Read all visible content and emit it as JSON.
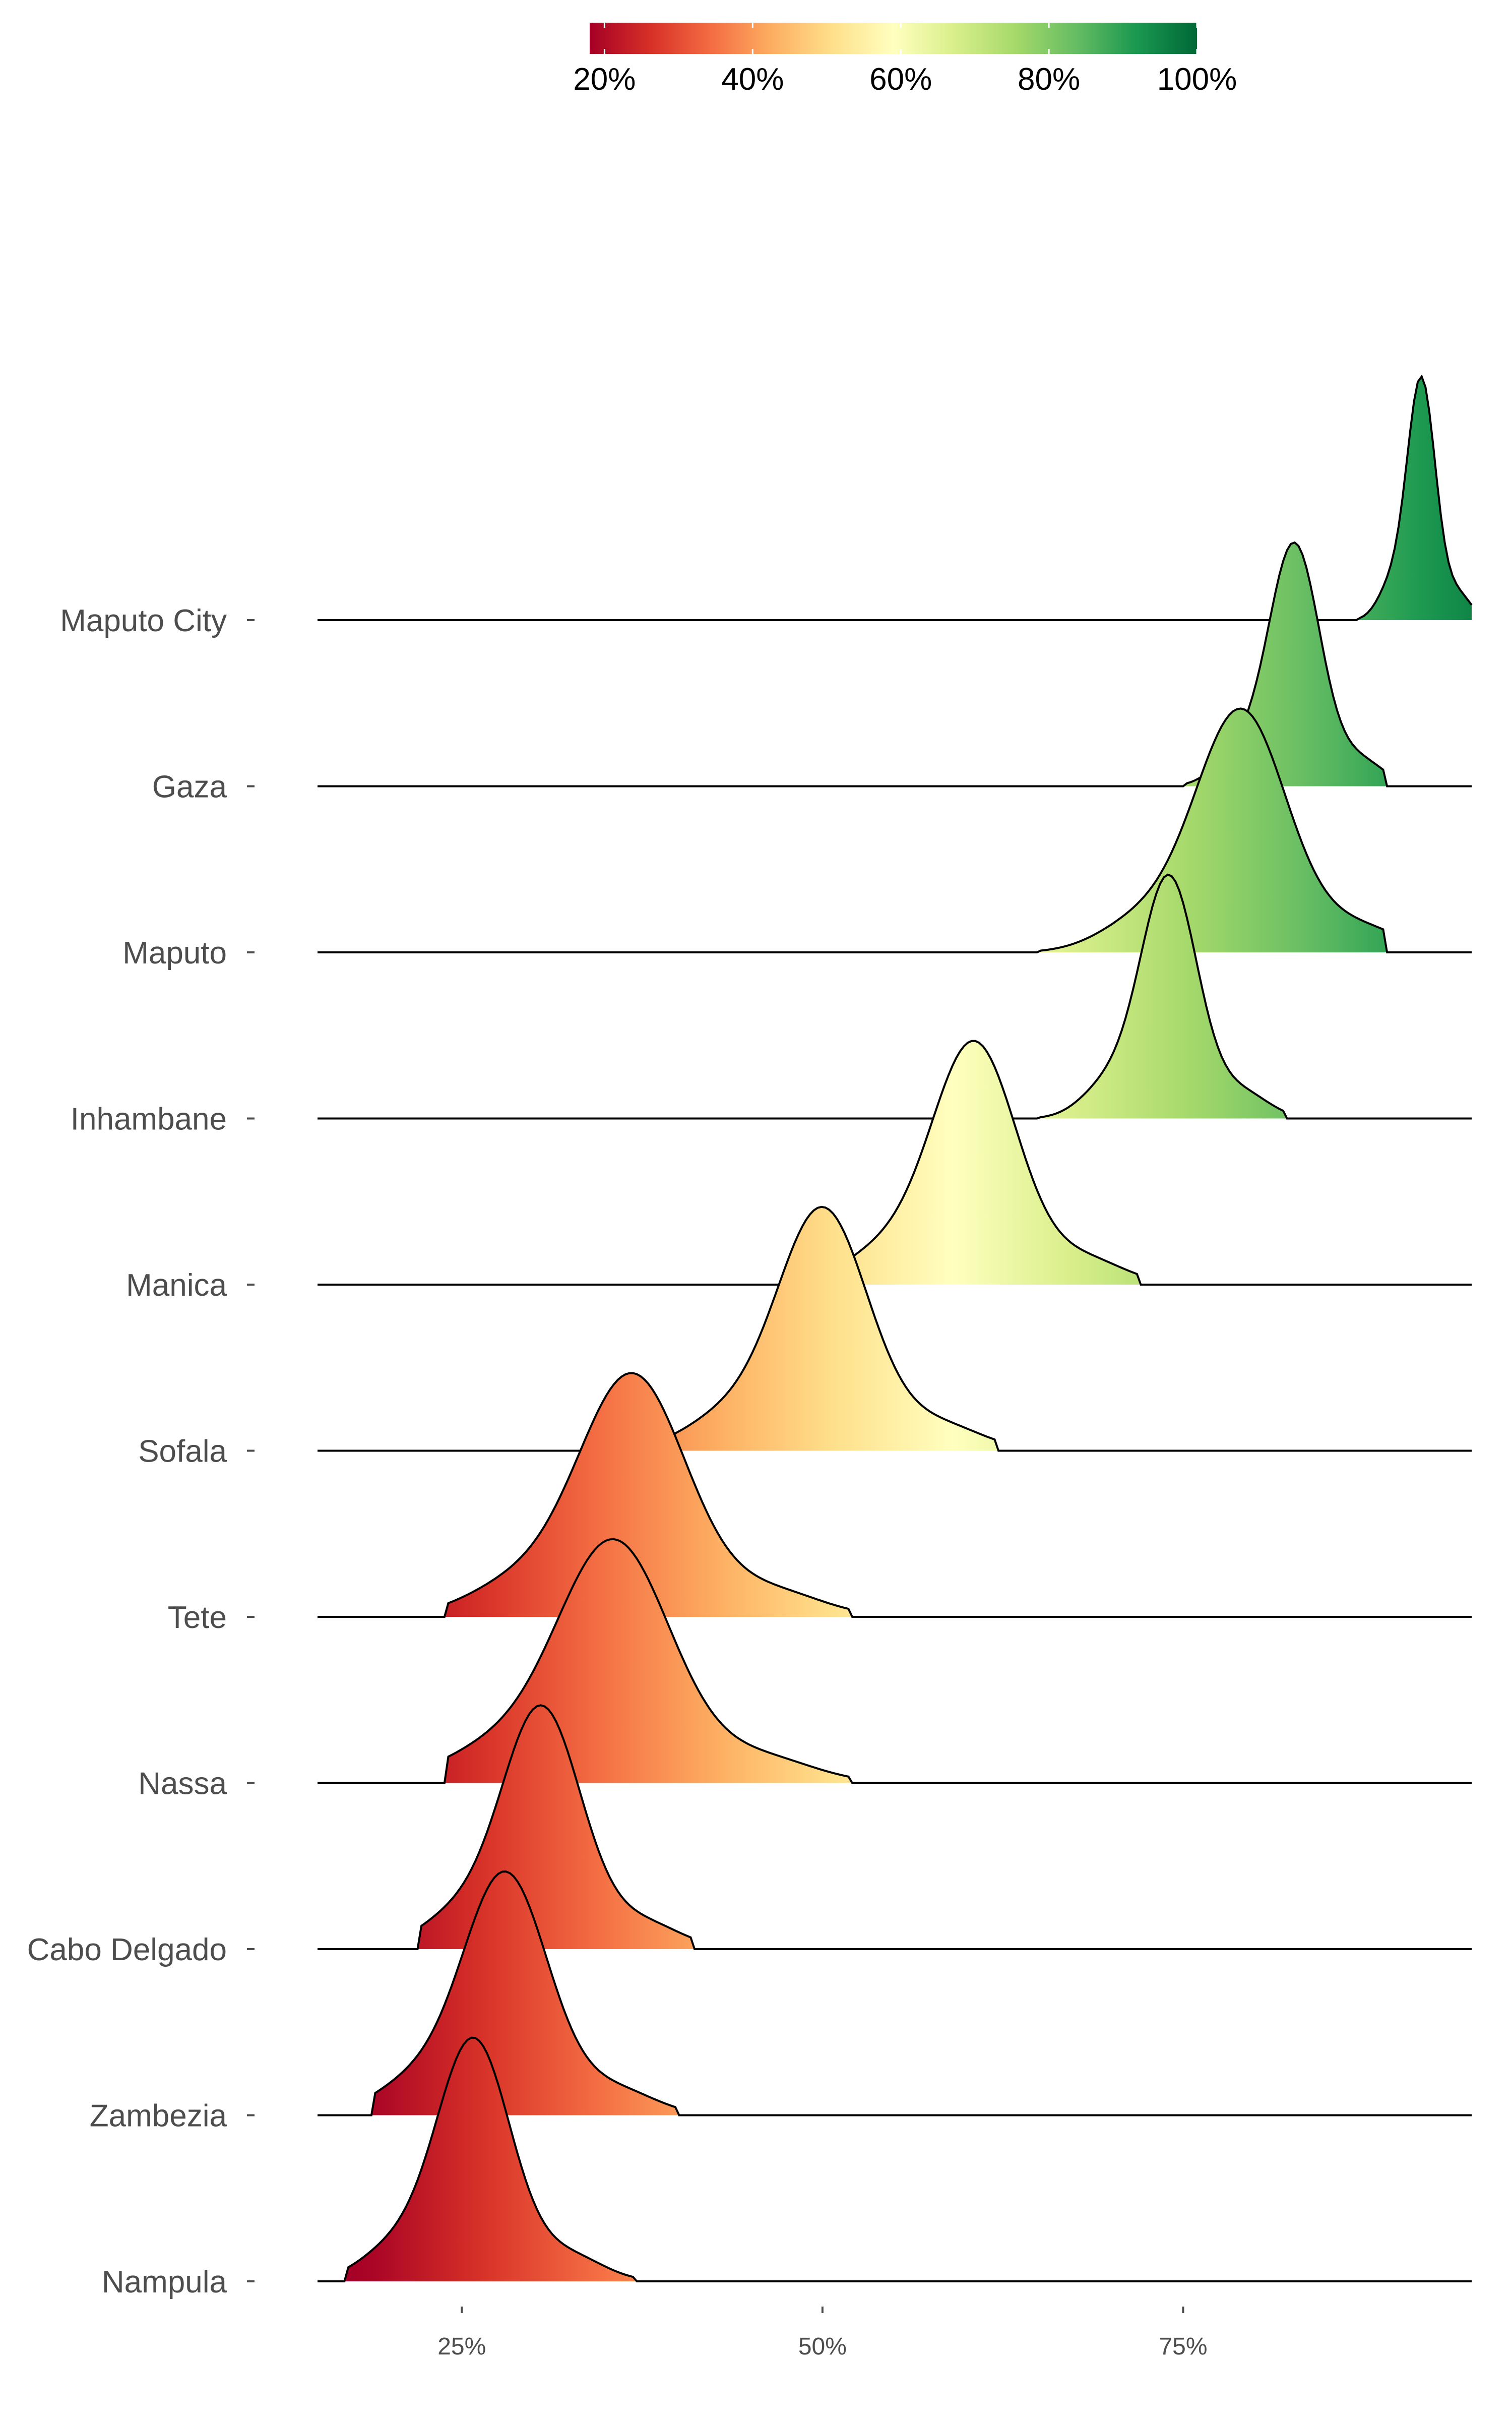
{
  "chart_data": {
    "type": "ridgeline",
    "title": "",
    "xlabel": "",
    "ylabel": "",
    "xlim": [
      0.15,
      0.95
    ],
    "x_ticks": [
      {
        "value": 0.25,
        "label": "25%"
      },
      {
        "value": 0.5,
        "label": "50%"
      },
      {
        "value": 0.75,
        "label": "75%"
      }
    ],
    "colorbar": {
      "position": "top",
      "range": [
        0.18,
        1.0
      ],
      "palette": [
        "#a50026",
        "#d73027",
        "#f46d43",
        "#fdae61",
        "#fee08b",
        "#ffffbf",
        "#d9ef8b",
        "#a6d96a",
        "#66bd63",
        "#1a9850",
        "#006837"
      ],
      "ticks": [
        {
          "value": 0.2,
          "label": "20%"
        },
        {
          "value": 0.4,
          "label": "40%"
        },
        {
          "value": 0.6,
          "label": "60%"
        },
        {
          "value": 0.8,
          "label": "80%"
        },
        {
          "value": 1.0,
          "label": "100%"
        }
      ]
    },
    "series": [
      {
        "name": "Nampula",
        "peak": 0.258,
        "width": 0.026,
        "range": [
          0.15,
          0.95
        ],
        "support": [
          0.17,
          0.37
        ]
      },
      {
        "name": "Zambezia",
        "peak": 0.28,
        "width": 0.03,
        "range": [
          0.15,
          0.95
        ],
        "support": [
          0.19,
          0.4
        ]
      },
      {
        "name": "Cabo Delgado",
        "peak": 0.305,
        "width": 0.028,
        "range": [
          0.15,
          0.95
        ],
        "support": [
          0.22,
          0.41
        ]
      },
      {
        "name": "Nassa",
        "peak": 0.355,
        "width": 0.04,
        "range": [
          0.15,
          0.95
        ],
        "support": [
          0.24,
          0.52
        ]
      },
      {
        "name": "Tete",
        "peak": 0.368,
        "width": 0.038,
        "range": [
          0.15,
          0.95
        ],
        "support": [
          0.24,
          0.52
        ]
      },
      {
        "name": "Sofala",
        "peak": 0.5,
        "width": 0.032,
        "range": [
          0.15,
          0.95
        ],
        "support": [
          0.38,
          0.62
        ]
      },
      {
        "name": "Manica",
        "peak": 0.605,
        "width": 0.03,
        "range": [
          0.15,
          0.95
        ],
        "support": [
          0.49,
          0.72
        ]
      },
      {
        "name": "Inhambane",
        "peak": 0.74,
        "width": 0.02,
        "range": [
          0.15,
          0.95
        ],
        "support": [
          0.65,
          0.82
        ]
      },
      {
        "name": "Maputo",
        "peak": 0.79,
        "width": 0.032,
        "range": [
          0.15,
          0.95
        ],
        "support": [
          0.65,
          0.89
        ]
      },
      {
        "name": "Gaza",
        "peak": 0.827,
        "width": 0.018,
        "range": [
          0.15,
          0.95
        ],
        "support": [
          0.75,
          0.89
        ]
      },
      {
        "name": "Maputo City",
        "peak": 0.915,
        "width": 0.01,
        "range": [
          0.15,
          0.95
        ],
        "support": [
          0.87,
          0.96
        ]
      }
    ]
  }
}
